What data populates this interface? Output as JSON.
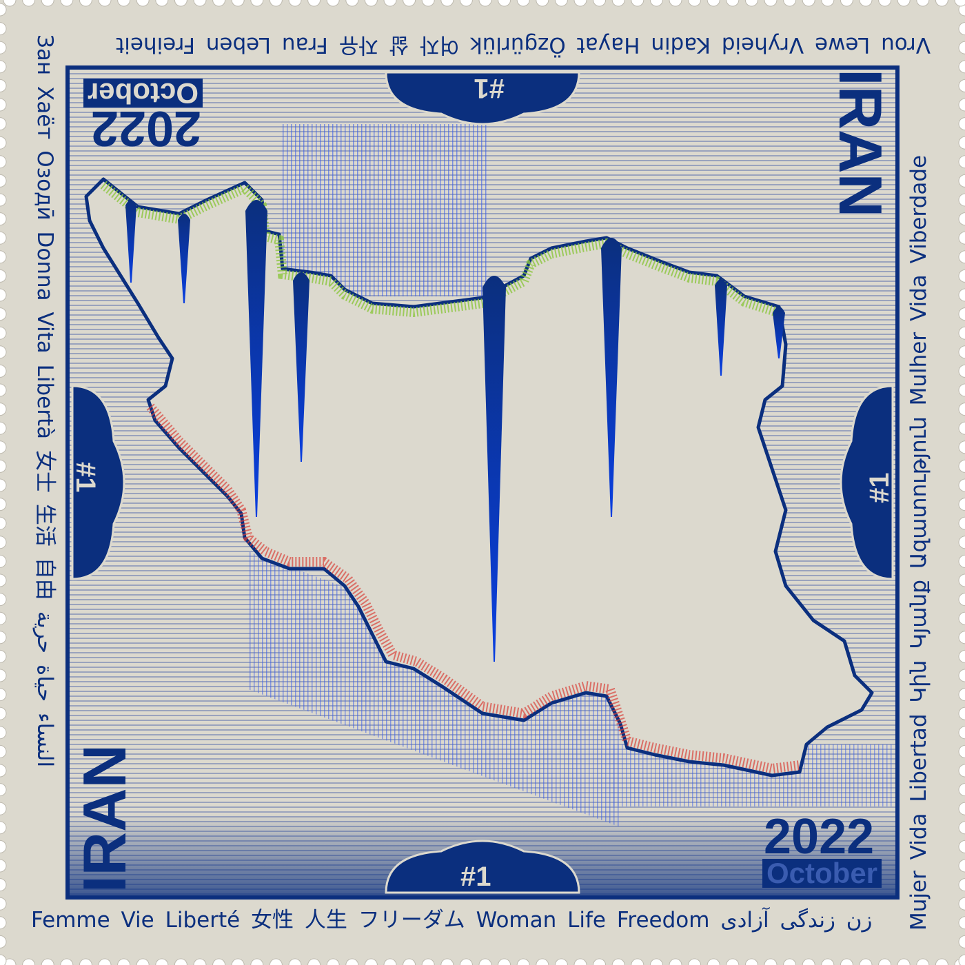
{
  "colors": {
    "ink": "#0b2f7e",
    "paper": "#dcd9ce",
    "icicle": "#0b3fcf",
    "north_edge": "#8cc63f",
    "south_edge": "#d9423a"
  },
  "texts": {
    "bottom": "Femme  Vie  Liberté 女性  人生  フリーダム Woman Life Freedom زن  زندگی  آزادی",
    "top": "Vrou Lewe Vryheid   Kadin Hayat Özgürlük   여자  삶  자유   Frau  Leben  Freiheit",
    "left": "Зан  Хаёт  Озодӣ   Donna  Vita  Libertà   女士   生活   自由   النساء حياة حرية",
    "right": "Mujer Vida Libertad   Կին  Կյանք  Ազատություն   Mulher  Vida  Viberdade"
  },
  "labels": {
    "country": "IRAN",
    "year": "2022",
    "month": "October",
    "number": "#1"
  }
}
